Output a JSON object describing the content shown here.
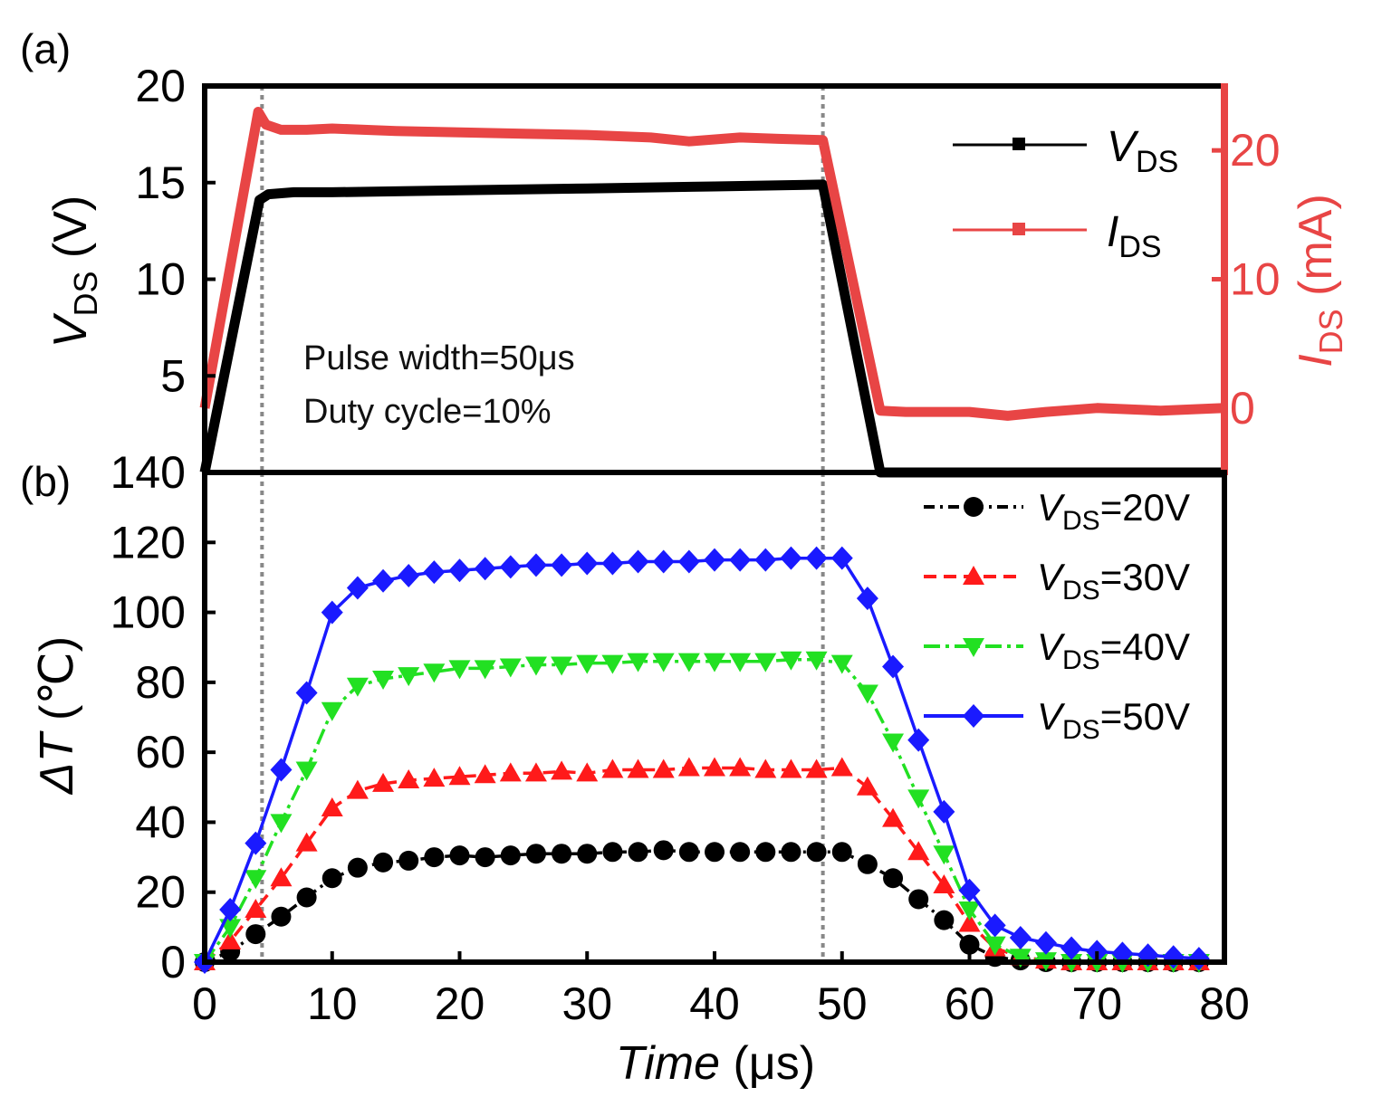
{
  "colors": {
    "axis": "#000000",
    "ids_red": "#e84545",
    "vds_black": "#000000",
    "s20": "#000000",
    "s30": "#ff1a1a",
    "s40": "#22e022",
    "s50": "#1a1aff",
    "guide": "#888888"
  },
  "chart_data": [
    {
      "panel": "(a)",
      "type": "line",
      "xlabel": "Time (μs)",
      "xlim": [
        0,
        80
      ],
      "ylabel_left": {
        "main": "V",
        "sub": "DS",
        "unit": " (V)"
      },
      "ylim_left": [
        0,
        20
      ],
      "yticks_left": [
        "5",
        "10",
        "15",
        "20"
      ],
      "ylabel_right": {
        "main": "I",
        "sub": "DS",
        "unit": " (mA)"
      },
      "ylim_right": [
        -5,
        25
      ],
      "yticks_right": [
        "0",
        "10",
        "20"
      ],
      "annotations": [
        "Pulse width=50μs",
        "Duty cycle=10%"
      ],
      "legend_position": "top-right",
      "series": [
        {
          "name": "VDS",
          "label_main": "V",
          "label_sub": "DS",
          "axis": "left",
          "color": "#000000",
          "x": [
            0,
            4.3,
            5,
            7,
            10,
            20,
            30,
            40,
            48.5,
            53,
            60,
            70,
            80
          ],
          "y": [
            0,
            14.1,
            14.4,
            14.5,
            14.5,
            14.6,
            14.7,
            14.8,
            14.9,
            0,
            0,
            0,
            0
          ]
        },
        {
          "name": "IDS",
          "label_main": "I",
          "label_sub": "DS",
          "axis": "right",
          "color": "#e84545",
          "x": [
            0,
            4.2,
            4.8,
            6,
            8,
            10,
            15,
            20,
            25,
            30,
            35,
            38,
            42,
            45,
            48.5,
            53,
            55,
            60,
            63,
            66,
            70,
            75,
            80
          ],
          "y": [
            0,
            23,
            22,
            21.6,
            21.6,
            21.7,
            21.5,
            21.4,
            21.3,
            21.2,
            21,
            20.7,
            21,
            20.9,
            20.8,
            -0.2,
            -0.3,
            -0.3,
            -0.6,
            -0.3,
            0,
            -0.2,
            0
          ]
        }
      ],
      "guide_lines_x": [
        4.5,
        48.5
      ]
    },
    {
      "panel": "(b)",
      "type": "line",
      "xlabel": "Time (μs)",
      "xlabel_main": "Time",
      "xlabel_unit": " (μs)",
      "xlim": [
        0,
        80
      ],
      "xticks": [
        "0",
        "10",
        "20",
        "30",
        "40",
        "50",
        "60",
        "70",
        "80"
      ],
      "ylabel": "ΔT (℃)",
      "ylabel_main": "ΔT",
      "ylabel_unit": " (℃)",
      "ylim": [
        0,
        140
      ],
      "yticks": [
        "0",
        "20",
        "40",
        "60",
        "80",
        "100",
        "120",
        "140"
      ],
      "legend_position": "top-right",
      "x": [
        0,
        2,
        4,
        6,
        8,
        10,
        12,
        14,
        16,
        18,
        20,
        22,
        24,
        26,
        28,
        30,
        32,
        34,
        36,
        38,
        40,
        42,
        44,
        46,
        48,
        50,
        52,
        54,
        56,
        58,
        60,
        62,
        64,
        66,
        68,
        70,
        72,
        74,
        76,
        78
      ],
      "series": [
        {
          "name": "VDS=20V",
          "label_main": "V",
          "label_sub": "DS",
          "label_value": "=20V",
          "marker": "circle",
          "dash": "12 6 3 6",
          "color": "#000000",
          "values": [
            0,
            3,
            8,
            13,
            18.5,
            24,
            27,
            28.5,
            29,
            30,
            30.5,
            30,
            30.5,
            31,
            31,
            31,
            31.5,
            31.5,
            32,
            31.5,
            31.5,
            31.5,
            31.5,
            31.5,
            31.5,
            31.5,
            28,
            24,
            18,
            12,
            5,
            1.5,
            0.5,
            0,
            0,
            0,
            0,
            0,
            0,
            0
          ]
        },
        {
          "name": "VDS=30V",
          "label_main": "V",
          "label_sub": "DS",
          "label_value": "=30V",
          "marker": "triangle-up",
          "dash": "14 8",
          "color": "#ff1a1a",
          "values": [
            0,
            6,
            15,
            24,
            34,
            44,
            49,
            51,
            52,
            52.5,
            53,
            53.5,
            54,
            54,
            54.5,
            54,
            55,
            55,
            55,
            55.5,
            55.5,
            55.5,
            55,
            55,
            55,
            55.5,
            50,
            41,
            31.5,
            22,
            11,
            4,
            1.5,
            0.5,
            0,
            0,
            0,
            0,
            0,
            0
          ]
        },
        {
          "name": "VDS=40V",
          "label_main": "V",
          "label_sub": "DS",
          "label_value": "=40V",
          "marker": "triangle-down",
          "dash": "18 6 4 6",
          "color": "#22e022",
          "values": [
            0,
            10,
            24,
            40,
            55,
            72,
            79,
            81,
            82,
            83,
            84,
            84,
            84.5,
            85,
            85,
            85.5,
            85.5,
            86,
            86,
            86,
            86,
            86,
            86,
            86.5,
            86.5,
            85.5,
            77,
            63,
            47,
            31,
            15,
            5,
            1.5,
            0.5,
            0,
            0,
            0,
            0,
            0,
            0
          ]
        },
        {
          "name": "VDS=50V",
          "label_main": "V",
          "label_sub": "DS",
          "label_value": "=50V",
          "marker": "diamond",
          "dash": "",
          "color": "#1a1aff",
          "values": [
            0,
            15,
            34,
            55,
            77,
            100,
            107,
            109,
            110.5,
            111.5,
            112,
            112.5,
            113,
            113.5,
            113.5,
            114,
            114,
            114.5,
            114.5,
            114.5,
            115,
            115,
            115,
            115.5,
            115.5,
            115.5,
            104,
            84.5,
            63.5,
            43,
            20.5,
            10.5,
            7,
            5.5,
            4,
            3,
            2.5,
            2,
            1.5,
            1
          ]
        }
      ],
      "guide_lines_x": [
        4.5,
        48.5
      ]
    }
  ]
}
